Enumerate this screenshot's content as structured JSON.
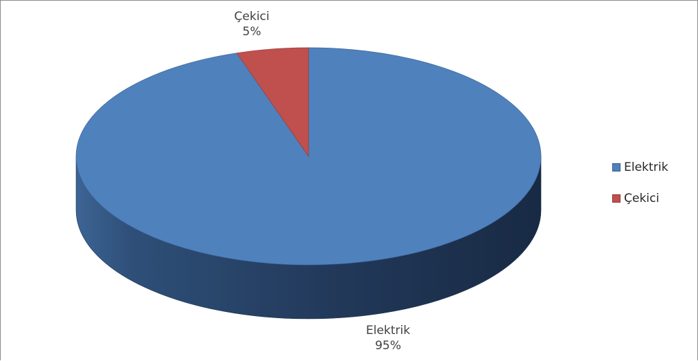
{
  "chart_data": {
    "type": "pie",
    "style": "3d",
    "categories": [
      "Elektrik",
      "Çekici"
    ],
    "values": [
      95,
      5
    ],
    "colors": [
      "#4f81bd",
      "#c0504d"
    ],
    "data_labels": [
      {
        "category": "Elektrik",
        "percent": "95%"
      },
      {
        "category": "Çekici",
        "percent": "5%"
      }
    ],
    "legend": {
      "placement": "right",
      "items": [
        {
          "label": "Elektrik",
          "color": "#4f81bd"
        },
        {
          "label": "Çekici",
          "color": "#c0504d"
        }
      ]
    }
  }
}
